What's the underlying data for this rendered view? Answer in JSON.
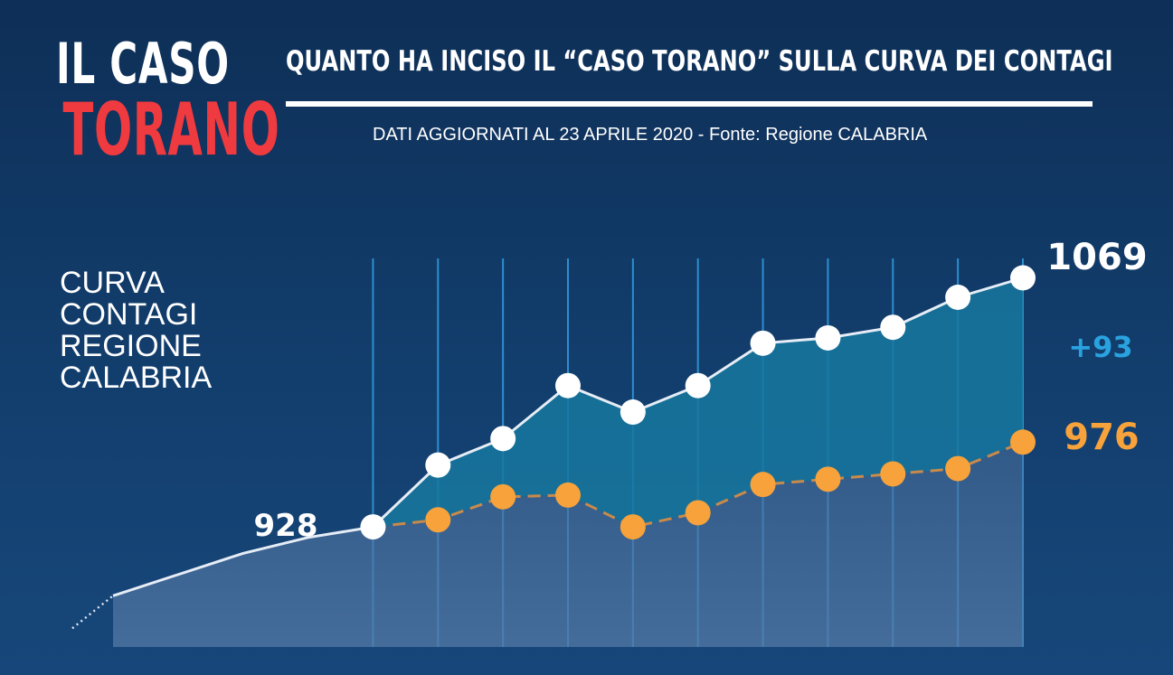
{
  "brand": {
    "line1": "IL CASO",
    "line2": "TORANO"
  },
  "headline": "QUANTO HA INCISO IL “CASO TORANO” SULLA CURVA DEI CONTAGI",
  "subline": "DATI AGGIORNATI AL 23 APRILE 2020 - Fonte: Regione CALABRIA",
  "side_label": [
    "CURVA",
    "CONTAGI",
    "REGIONE",
    "CALABRIA"
  ],
  "colors": {
    "accent_red": "#ef3a3f",
    "orange": "#f7a23b",
    "blue_diff": "#29a3e0",
    "white": "#ffffff"
  },
  "chart_data": {
    "type": "area",
    "title": "",
    "xlabel": "",
    "ylabel": "",
    "ylim": [
      860,
      1080
    ],
    "grid": "vertical",
    "series": [
      {
        "values": [
          889,
          901,
          913,
          922,
          928,
          963,
          978,
          1008,
          993,
          1008,
          1032,
          1035,
          1041,
          1058,
          1069
        ]
      },
      {
        "values": [
          null,
          null,
          null,
          null,
          928,
          932,
          945,
          946,
          928,
          936,
          952,
          955,
          958,
          961,
          976
        ]
      }
    ],
    "annotations": {
      "start": "928",
      "end_total": "1069",
      "difference": "+93",
      "end_baseline": "976"
    }
  }
}
